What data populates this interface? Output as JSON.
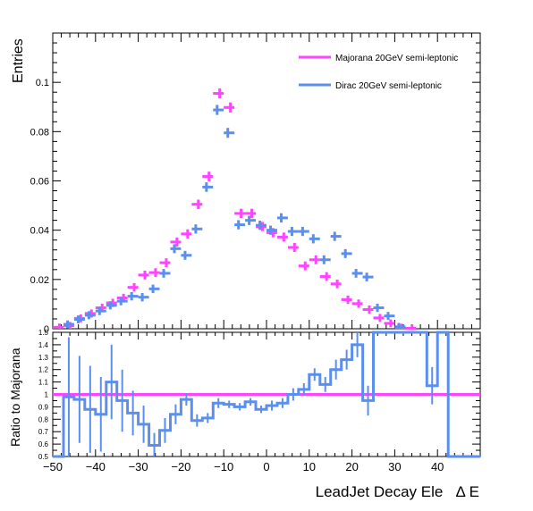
{
  "colors": {
    "majorana": "#ff44ff",
    "dirac": "#5a8ff0",
    "axis": "#000000"
  },
  "chart_data": [
    {
      "type": "scatter",
      "title": "",
      "xlabel": "",
      "ylabel": "Entries",
      "xlim": [
        -50,
        50
      ],
      "ylim": [
        0,
        0.12
      ],
      "bin_width": 2.5,
      "y_ticks": [
        {
          "v": 0,
          "label": "0"
        },
        {
          "v": 0.02,
          "label": "0.02"
        },
        {
          "v": 0.04,
          "label": "0.04"
        },
        {
          "v": 0.06,
          "label": "0.06"
        },
        {
          "v": 0.08,
          "label": "0.08"
        },
        {
          "v": 0.1,
          "label": "0.1"
        }
      ],
      "legend": {
        "position": "top-right"
      },
      "series": [
        {
          "name": "Majorana 20GeV semi-leptonic",
          "x": [
            -48.75,
            -46.25,
            -43.75,
            -41.25,
            -38.75,
            -36.25,
            -33.75,
            -31.25,
            -28.75,
            -26.25,
            -23.75,
            -21.25,
            -18.75,
            -16.25,
            -13.75,
            -11.25,
            -8.75,
            -6.25,
            -3.75,
            -1.25,
            1.25,
            3.75,
            6.25,
            8.75,
            11.25,
            13.75,
            16.25,
            18.75,
            21.25,
            23.75,
            26.25,
            28.75,
            31.25,
            33.75,
            36.25,
            38.75,
            41.25,
            43.75,
            46.25,
            48.75
          ],
          "y": [
            0.0006,
            0.0012,
            0.0042,
            0.0062,
            0.0085,
            0.0105,
            0.0125,
            0.0168,
            0.0218,
            0.0228,
            0.0268,
            0.0352,
            0.0385,
            0.0505,
            0.0618,
            0.0955,
            0.0898,
            0.0468,
            0.0468,
            0.0415,
            0.039,
            0.0372,
            0.033,
            0.0255,
            0.028,
            0.0212,
            0.0182,
            0.0118,
            0.0102,
            0.0078,
            0.0044,
            0.0022,
            0.0005,
            0.0002,
            0,
            0,
            0,
            0,
            0,
            0
          ]
        },
        {
          "name": "Dirac 20GeV semi-leptonic",
          "x": [
            -48.75,
            -46.25,
            -43.75,
            -41.25,
            -38.75,
            -36.25,
            -33.75,
            -31.25,
            -28.75,
            -26.25,
            -23.75,
            -21.25,
            -18.75,
            -16.25,
            -13.75,
            -11.25,
            -8.75,
            -6.25,
            -3.75,
            -1.25,
            1.25,
            3.75,
            6.25,
            8.75,
            11.25,
            13.75,
            16.25,
            18.75,
            21.25,
            23.75,
            26.25,
            28.75,
            31.25,
            33.75,
            36.25,
            38.75,
            41.25,
            43.75,
            46.25,
            48.75
          ],
          "y": [
            0,
            0.0018,
            0.0038,
            0.0055,
            0.0072,
            0.0095,
            0.0112,
            0.0132,
            0.0128,
            0.0162,
            0.0225,
            0.0325,
            0.0298,
            0.0405,
            0.0575,
            0.0888,
            0.0795,
            0.0422,
            0.044,
            0.042,
            0.04,
            0.045,
            0.0395,
            0.0395,
            0.0365,
            0.028,
            0.0375,
            0.0305,
            0.0225,
            0.021,
            0.0085,
            0.0052,
            0.0008,
            0,
            0,
            0,
            0,
            0,
            0,
            0
          ]
        }
      ]
    },
    {
      "type": "line",
      "title": "",
      "xlabel": "LeadJet Decay Ele   Δ E",
      "ylabel": "Ratio to Majorana",
      "xlim": [
        -50,
        50
      ],
      "ylim": [
        0.5,
        1.5
      ],
      "x_ticks": [
        -50,
        -40,
        -30,
        -20,
        -10,
        0,
        10,
        20,
        30,
        40
      ],
      "y_ticks": [
        {
          "v": 0.5,
          "label": "0.5"
        },
        {
          "v": 0.6,
          "label": "0.6"
        },
        {
          "v": 0.7,
          "label": "0.7"
        },
        {
          "v": 0.8,
          "label": "0.8"
        },
        {
          "v": 0.9,
          "label": "0.9"
        },
        {
          "v": 1.0,
          "label": "1"
        },
        {
          "v": 1.1,
          "label": "1.1"
        },
        {
          "v": 1.2,
          "label": "1.2"
        },
        {
          "v": 1.3,
          "label": "1.3"
        },
        {
          "v": 1.4,
          "label": "1.4"
        },
        {
          "v": 1.5,
          "label": "1.5"
        }
      ],
      "reference_line": 1.0,
      "series": [
        {
          "name": "",
          "x": [
            -48.75,
            -46.25,
            -43.75,
            -41.25,
            -38.75,
            -36.25,
            -33.75,
            -31.25,
            -28.75,
            -26.25,
            -23.75,
            -21.25,
            -18.75,
            -16.25,
            -13.75,
            -11.25,
            -8.75,
            -6.25,
            -3.75,
            -1.25,
            1.25,
            3.75,
            6.25,
            8.75,
            11.25,
            13.75,
            16.25,
            18.75,
            21.25,
            23.75,
            26.25,
            28.75,
            31.25,
            33.75,
            36.25,
            38.75,
            41.25,
            43.75,
            46.25,
            48.75
          ],
          "y": [
            0.5,
            0.98,
            0.96,
            0.88,
            0.84,
            1.1,
            0.95,
            0.85,
            0.76,
            0.59,
            0.71,
            0.84,
            0.96,
            0.79,
            0.81,
            0.93,
            0.92,
            0.9,
            0.94,
            0.88,
            0.91,
            0.93,
            1.0,
            1.04,
            1.16,
            1.08,
            1.2,
            1.28,
            1.4,
            0.95,
            1.5,
            1.5,
            1.5,
            1.5,
            1.5,
            1.07,
            1.5,
            0.5,
            0.5,
            0.5
          ],
          "err": [
            0,
            0.48,
            0.35,
            0.35,
            0.3,
            0.3,
            0.25,
            0.18,
            0.15,
            0.1,
            0.1,
            0.08,
            0.05,
            0.05,
            0.04,
            0.04,
            0.03,
            0.03,
            0.03,
            0.03,
            0.04,
            0.04,
            0.05,
            0.05,
            0.05,
            0.06,
            0.08,
            0.08,
            0.1,
            0.12,
            0,
            0,
            0,
            0,
            0,
            0.15,
            0,
            0,
            0,
            0
          ]
        }
      ]
    }
  ]
}
